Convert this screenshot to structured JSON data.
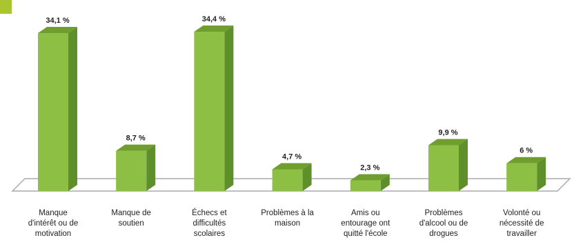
{
  "chart_data": {
    "type": "bar",
    "style": "3d-column",
    "categories": [
      "Manque\nd'intérêt ou de\nmotivation",
      "Manque de\nsoutien",
      "Échecs et\ndifficultés\nscolaires",
      "Problèmes à la\nmaison",
      "Amis ou\nentourage ont\nquitté l'école",
      "Problèmes\nd'alcool ou de\ndrogues",
      "Volonté ou\nnécessité de\ntravailler"
    ],
    "values": [
      34.1,
      8.7,
      34.4,
      4.7,
      2.3,
      9.9,
      6
    ],
    "value_labels": [
      "34,1 %",
      "8,7 %",
      "34,4 %",
      "4,7 %",
      "2,3 %",
      "9,9 %",
      "6 %"
    ],
    "ylim": [
      0,
      35
    ],
    "grid": false,
    "legend": "none"
  },
  "colors": {
    "bar_front": "#8cbf43",
    "bar_side": "#5f8f2a",
    "bar_top": "#6f9e2f",
    "floor_stroke": "#aaaaaa",
    "corner_accent": "#a9c52f"
  }
}
